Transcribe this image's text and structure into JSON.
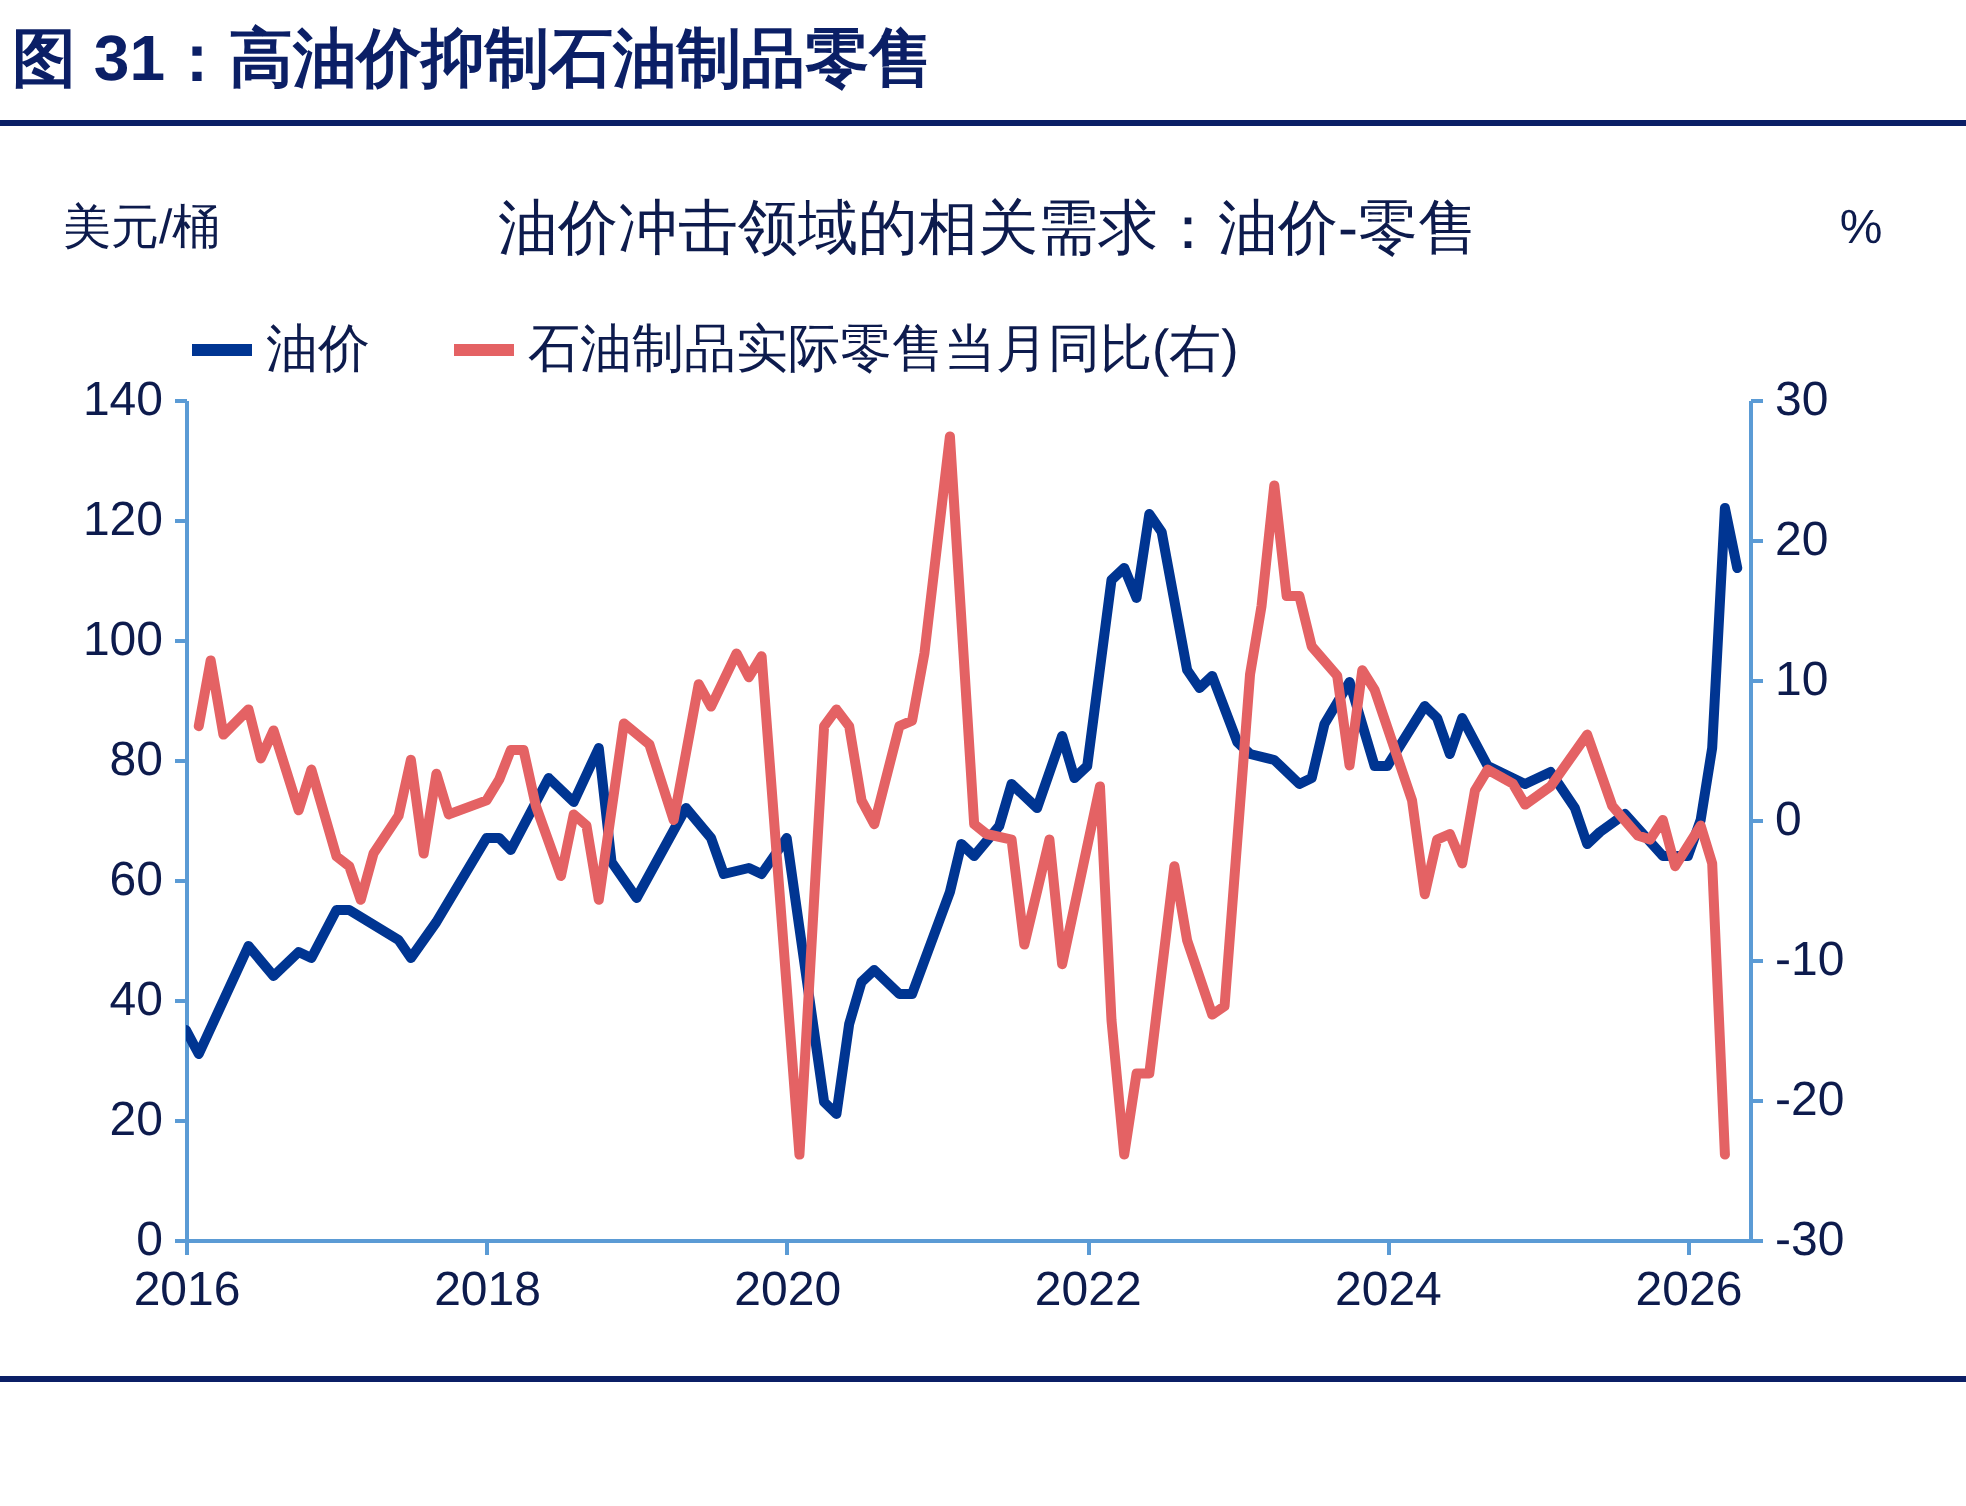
{
  "chart_data": {
    "type": "line",
    "title": "图 31：高油价抑制石油制品零售",
    "subtitle": "油价冲击领域的相关需求：油价-零售",
    "ylabel": "美元/桶",
    "y2label": "%",
    "xlim": [
      "2016-01",
      "2026-06"
    ],
    "xticks": [
      "2016",
      "2018",
      "2020",
      "2022",
      "2024",
      "2026"
    ],
    "ylim": [
      0,
      140
    ],
    "yticks": [
      0,
      20,
      40,
      60,
      80,
      100,
      120,
      140
    ],
    "y2lim": [
      -30,
      30
    ],
    "y2ticks": [
      -30,
      -20,
      -10,
      0,
      10,
      20,
      30
    ],
    "legend": "top",
    "grid": false,
    "line_style": "solid",
    "marker": "none",
    "series": [
      {
        "name": "油价",
        "color": "#003592",
        "x": [
          "2016-01",
          "2016-02",
          "2016-06",
          "2016-08",
          "2016-10",
          "2016-11",
          "2017-01",
          "2017-02",
          "2017-06",
          "2017-07",
          "2017-09",
          "2018-01",
          "2018-02",
          "2018-03",
          "2018-06",
          "2018-08",
          "2018-10",
          "2018-11",
          "2019-01",
          "2019-05",
          "2019-07",
          "2019-08",
          "2019-10",
          "2019-11",
          "2020-01",
          "2020-02",
          "2020-04",
          "2020-05",
          "2020-06",
          "2020-07",
          "2020-08",
          "2020-10",
          "2020-11",
          "2021-02",
          "2021-03",
          "2021-04",
          "2021-06",
          "2021-07",
          "2021-09",
          "2021-11",
          "2021-12",
          "2022-01",
          "2022-03",
          "2022-04",
          "2022-05",
          "2022-06",
          "2022-07",
          "2022-09",
          "2022-10",
          "2022-11",
          "2023-01",
          "2023-02",
          "2023-04",
          "2023-06",
          "2023-07",
          "2023-08",
          "2023-10",
          "2023-12",
          "2024-01",
          "2024-04",
          "2024-05",
          "2024-06",
          "2024-07",
          "2024-09",
          "2024-12",
          "2025-02",
          "2025-04",
          "2025-05",
          "2025-06",
          "2025-08",
          "2025-11",
          "2026-01",
          "2026-02",
          "2026-03",
          "2026-04",
          "2026-05"
        ],
        "values": [
          35,
          31,
          49,
          44,
          48,
          47,
          55,
          55,
          50,
          47,
          53,
          67,
          67,
          65,
          77,
          73,
          82,
          63,
          57,
          72,
          67,
          61,
          62,
          61,
          67,
          52,
          23,
          21,
          36,
          43,
          45,
          41,
          41,
          58,
          66,
          64,
          69,
          76,
          72,
          84,
          77,
          79,
          110,
          112,
          107,
          121,
          118,
          95,
          92,
          94,
          83,
          81,
          80,
          76,
          77,
          86,
          93,
          79,
          79,
          89,
          87,
          81,
          87,
          79,
          76,
          78,
          72,
          66,
          68,
          71,
          64,
          64,
          70,
          82,
          122,
          112
        ]
      },
      {
        "name": "石油制品实际零售当月同比(右)",
        "color": "#e46264",
        "axis": "y2",
        "x": [
          "2016-02",
          "2016-03",
          "2016-04",
          "2016-06",
          "2016-07",
          "2016-08",
          "2016-10",
          "2016-11",
          "2017-01",
          "2017-02",
          "2017-03",
          "2017-04",
          "2017-06",
          "2017-07",
          "2017-08",
          "2017-09",
          "2017-10",
          "2018-01",
          "2018-02",
          "2018-03",
          "2018-04",
          "2018-05",
          "2018-07",
          "2018-08",
          "2018-09",
          "2018-10",
          "2018-12",
          "2019-02",
          "2019-04",
          "2019-06",
          "2019-07",
          "2019-09",
          "2019-10",
          "2019-11",
          "2020-02",
          "2020-04",
          "2020-05",
          "2020-06",
          "2020-07",
          "2020-08",
          "2020-10",
          "2020-11",
          "2020-12",
          "2021-02",
          "2021-04",
          "2021-05",
          "2021-07",
          "2021-08",
          "2021-10",
          "2021-11",
          "2022-02",
          "2022-03",
          "2022-04",
          "2022-05",
          "2022-06",
          "2022-08",
          "2022-09",
          "2022-11",
          "2022-12",
          "2023-02",
          "2023-03",
          "2023-04",
          "2023-05",
          "2023-06",
          "2023-07",
          "2023-09",
          "2023-10",
          "2023-11",
          "2023-12",
          "2024-03",
          "2024-04",
          "2024-05",
          "2024-06",
          "2024-07",
          "2024-08",
          "2024-09",
          "2024-11",
          "2024-12",
          "2025-02",
          "2025-05",
          "2025-07",
          "2025-09",
          "2025-10",
          "2025-11",
          "2025-12",
          "2026-02",
          "2026-03",
          "2026-04"
        ],
        "values": [
          6.7,
          11.4,
          6.1,
          7.9,
          4.4,
          6.4,
          0.7,
          3.6,
          -2.6,
          -3.3,
          -5.7,
          -2.4,
          0.3,
          4.3,
          -2.4,
          3.3,
          0.4,
          1.4,
          2.9,
          5,
          5,
          1,
          -4,
          0.4,
          -0.4,
          -5.7,
          6.9,
          5.4,
          0,
          9.7,
          8.1,
          11.9,
          10.2,
          11.7,
          -23.9,
          6.7,
          7.9,
          6.7,
          1.4,
          -0.3,
          6.7,
          7.1,
          11.9,
          27.4,
          -0.3,
          -1,
          -1.4,
          -8.9,
          -1.4,
          -10.3,
          2.4,
          -14.3,
          -23.9,
          -18.1,
          -18.1,
          -3.3,
          -8.6,
          -13.9,
          -13.3,
          10.4,
          15.3,
          23.9,
          16,
          16,
          12.4,
          10.3,
          3.9,
          10.7,
          9.3,
          1.4,
          -5.3,
          -1.4,
          -1,
          -3.1,
          2.1,
          3.6,
          2.6,
          1.1,
          2.4,
          6.1,
          1,
          -1.1,
          -1.4,
          0,
          -3.3,
          -0.4,
          -3.1,
          -23.9
        ]
      }
    ]
  }
}
